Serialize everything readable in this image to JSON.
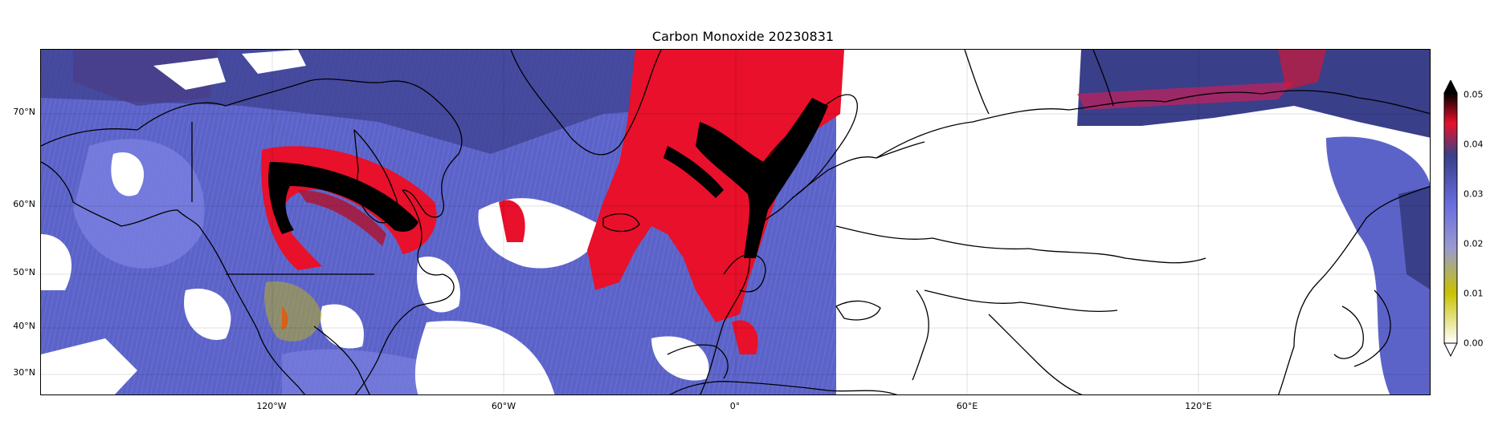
{
  "title": "Carbon Monoxide 20230831",
  "y_ticks": [
    "70°N",
    "60°N",
    "50°N",
    "40°N",
    "30°N"
  ],
  "x_ticks": [
    "120°W",
    "60°W",
    "0°",
    "60°E",
    "120°E"
  ],
  "colorbar": {
    "ticks": [
      "0.05",
      "0.04",
      "0.03",
      "0.02",
      "0.01",
      "0.00"
    ],
    "colors": [
      "#ffffff",
      "#c9c200",
      "#7a7ae8",
      "#38408a",
      "#e8102a",
      "#000000"
    ],
    "extend": "max"
  },
  "field_colors": {
    "background": "#5c63c8",
    "light": "#7b80e0",
    "dark": "#3a3f8a",
    "high": "#e8102a",
    "peak": "#000000",
    "low": "#c9c200",
    "cloud": "#ffffff"
  }
}
